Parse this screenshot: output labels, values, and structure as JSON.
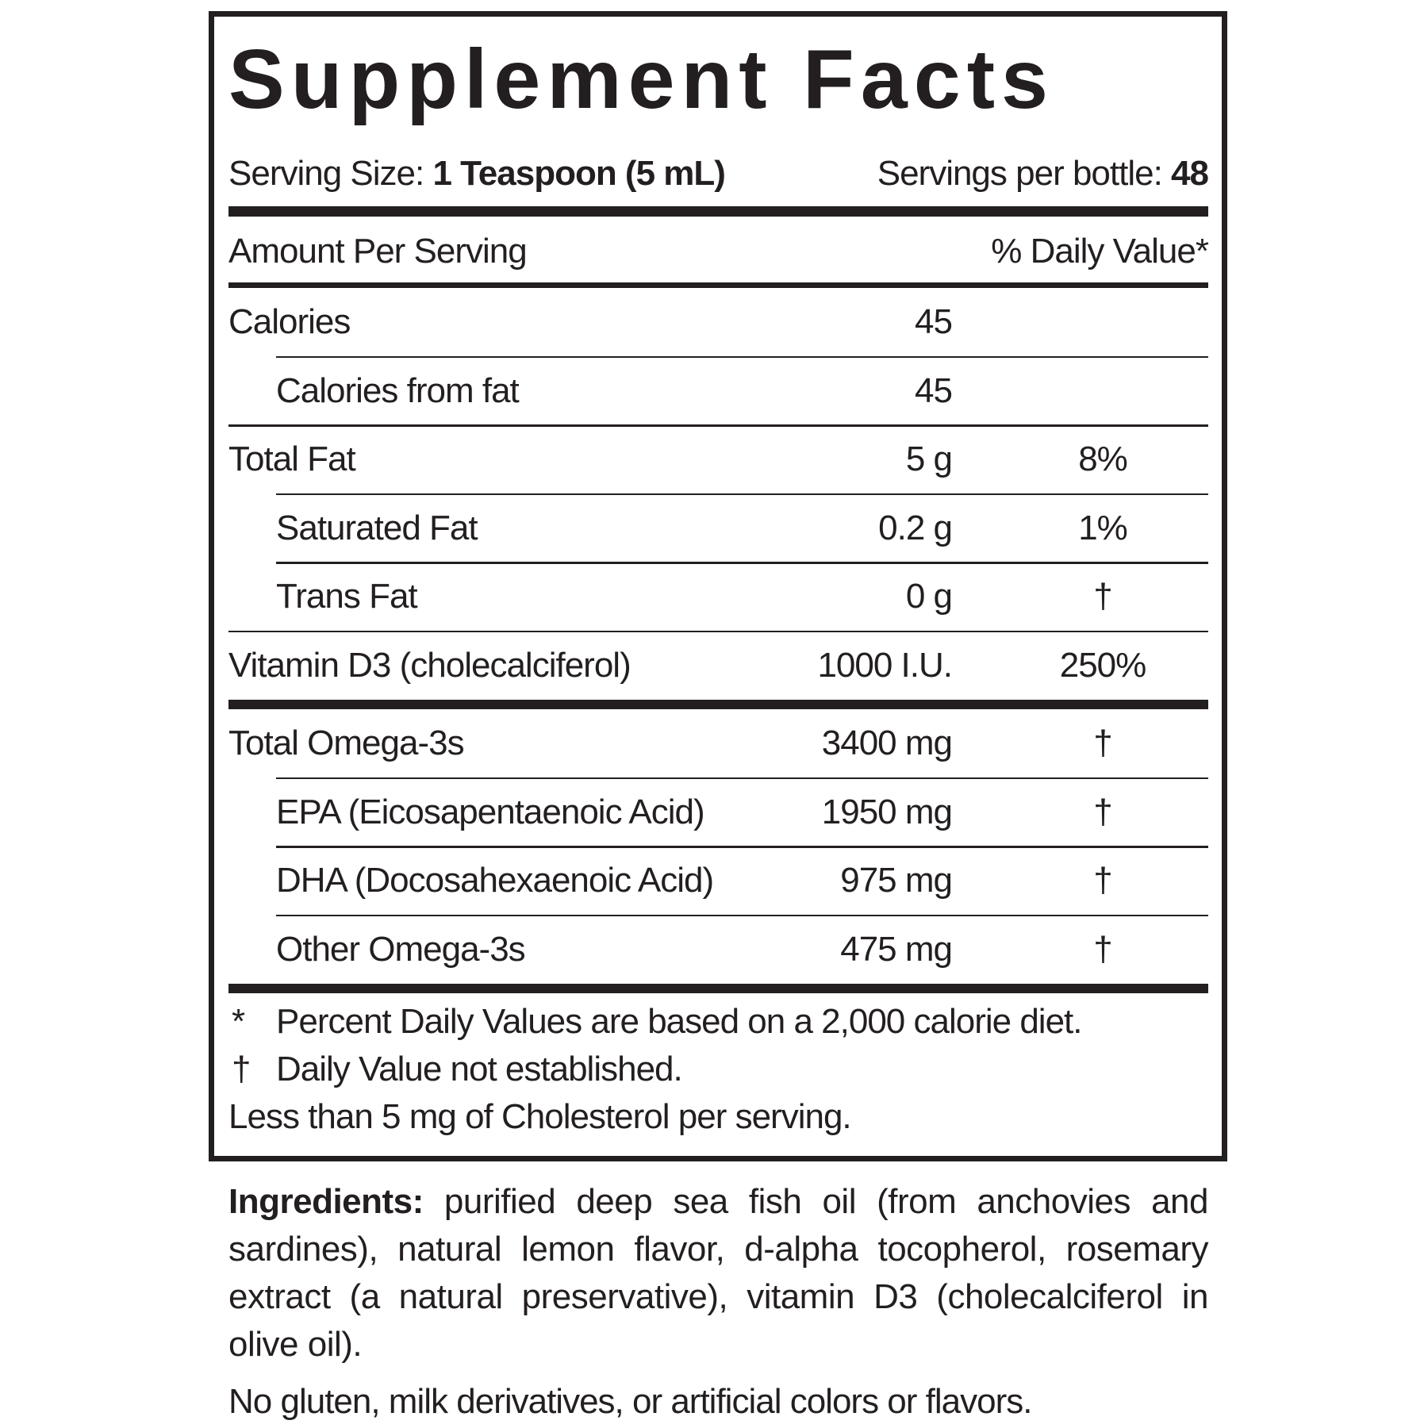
{
  "title": "Supplement Facts",
  "serving": {
    "size_label": "Serving Size:",
    "size": "1 Teaspoon (5 mL)",
    "per_label": "Servings per bottle:",
    "per": "48"
  },
  "header": {
    "amount": "Amount Per Serving",
    "dv": "% Daily Value*"
  },
  "sections": [
    {
      "rows": [
        {
          "name": "Calories",
          "amount": "45",
          "items": [
            {
              "name": "Calories from fat",
              "amount": "45"
            }
          ]
        },
        {
          "name": "Total Fat",
          "amount": "5 g",
          "dv": "8%",
          "items": [
            {
              "name": "Saturated Fat",
              "amount": "0.2 g",
              "dv": "1%"
            },
            {
              "name": "Trans Fat",
              "amount": "0 g",
              "dv": "†"
            }
          ]
        },
        {
          "name": "Vitamin D3 (cholecalciferol)",
          "amount": "1000 I.U.",
          "dv": "250%"
        }
      ]
    },
    {
      "rows": [
        {
          "name": "Total Omega-3s",
          "amount": "3400 mg",
          "dv": "†",
          "items": [
            {
              "name": "EPA (Eicosapentaenoic Acid)",
              "amount": "1950 mg",
              "dv": "†"
            },
            {
              "name": "DHA (Docosahexaenoic Acid)",
              "amount": "975 mg",
              "dv": "†"
            },
            {
              "name": "Other Omega-3s",
              "amount": "475 mg",
              "dv": "†"
            }
          ]
        }
      ]
    }
  ],
  "footnotes": [
    {
      "symbol": "*",
      "text": "Percent Daily Values are based on a 2,000 calorie diet."
    },
    {
      "symbol": "†",
      "text": "Daily Value not established."
    }
  ],
  "cholesterol_note": "Less than 5 mg of Cholesterol per serving.",
  "ingredients": {
    "label": "Ingredients:",
    "text": "purified deep sea fish oil (from anchovies and sardines), natural lemon flavor, d-alpha tocopherol, rosemary extract (a natural preservative), vitamin D3 (cholecalciferol in olive oil)."
  },
  "free_from": "No gluten, milk derivatives, or artificial colors or flavors."
}
